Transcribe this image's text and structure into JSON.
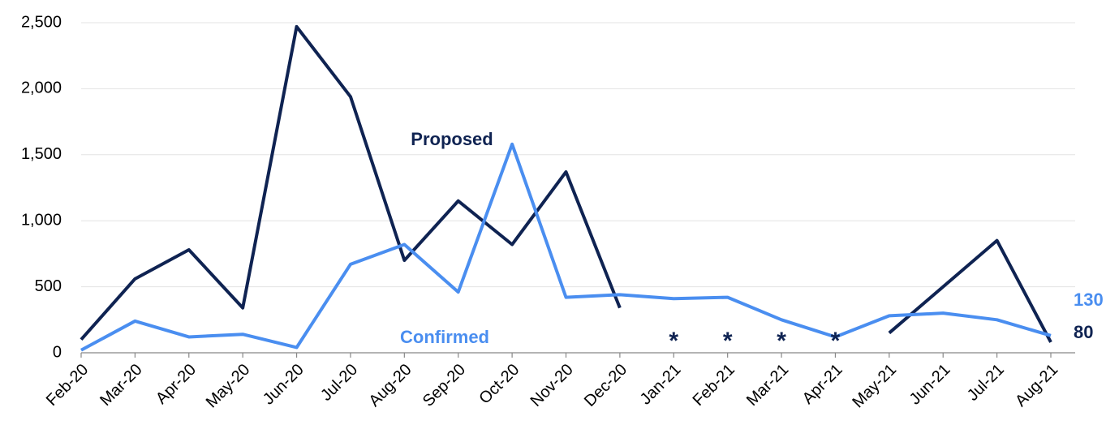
{
  "chart_data": {
    "type": "line",
    "categories": [
      "Feb-20",
      "Mar-20",
      "Apr-20",
      "May-20",
      "Jun-20",
      "Jul-20",
      "Aug-20",
      "Sep-20",
      "Oct-20",
      "Nov-20",
      "Dec-20",
      "Jan-21",
      "Feb-21",
      "Mar-21",
      "Apr-21",
      "May-21",
      "Jun-21",
      "Jul-21",
      "Aug-21"
    ],
    "series": [
      {
        "name": "Proposed",
        "color": "#0f2352",
        "values": [
          100,
          560,
          780,
          340,
          2470,
          1940,
          700,
          1150,
          820,
          1370,
          340,
          null,
          null,
          null,
          null,
          150,
          500,
          850,
          80
        ]
      },
      {
        "name": "Confirmed",
        "color": "#4a8ef0",
        "values": [
          20,
          240,
          120,
          140,
          40,
          670,
          820,
          460,
          1580,
          420,
          440,
          410,
          420,
          250,
          120,
          280,
          300,
          250,
          130
        ]
      }
    ],
    "annotations": [
      {
        "text": "*",
        "category": "Jan-21"
      },
      {
        "text": "*",
        "category": "Feb-21"
      },
      {
        "text": "*",
        "category": "Mar-21"
      },
      {
        "text": "*",
        "category": "Apr-21"
      }
    ],
    "ylim": [
      0,
      2500
    ],
    "yticks": [
      0,
      {
        "value": 500,
        "label": "500"
      },
      {
        "value": 1000,
        "label": "1,000"
      },
      {
        "value": 1500,
        "label": "1,500"
      },
      {
        "value": 2000,
        "label": "2,000"
      },
      {
        "value": 2500,
        "label": "2,500"
      }
    ],
    "grid": true
  }
}
